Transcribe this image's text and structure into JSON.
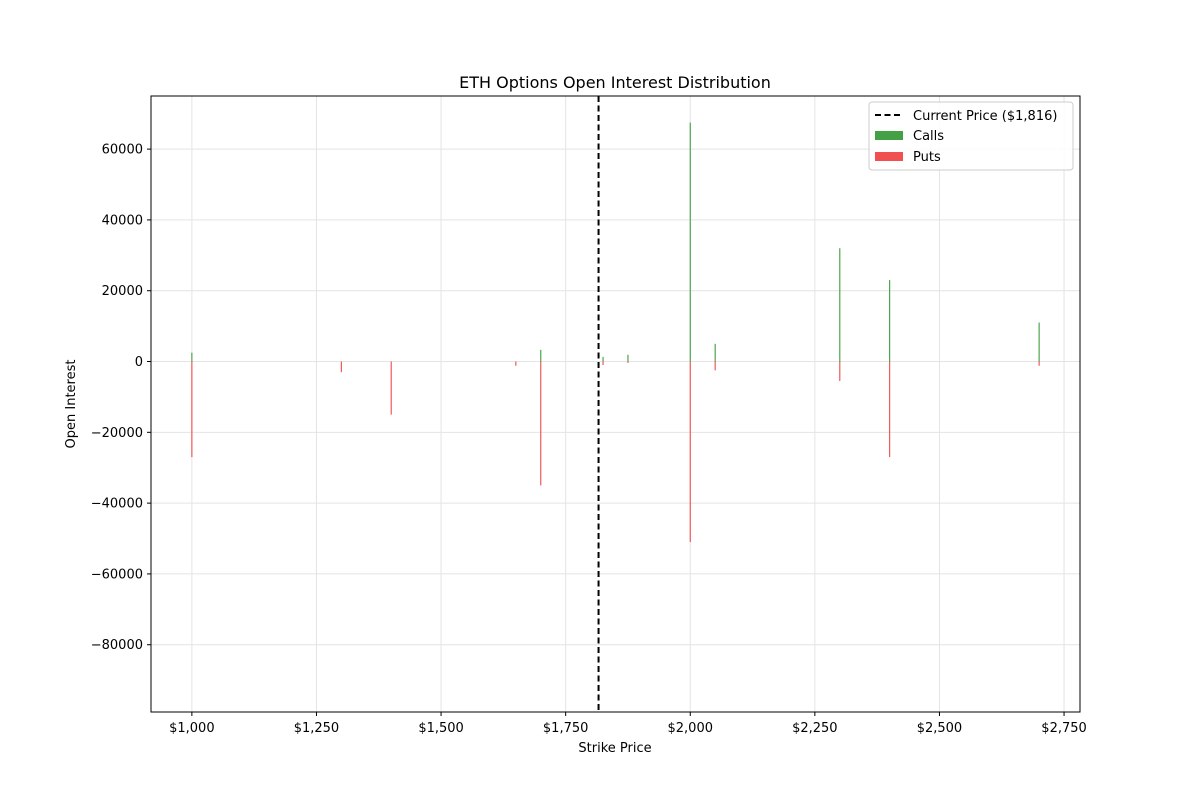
{
  "chart_data": {
    "type": "bar",
    "title": "ETH Options Open Interest Distribution",
    "xlabel": "Strike Price",
    "ylabel": "Open Interest",
    "xlim": [
      918,
      2782
    ],
    "ylim": [
      -99000,
      75000
    ],
    "x_ticks": [
      {
        "value": 1000,
        "label": "$1,000"
      },
      {
        "value": 1250,
        "label": "$1,250"
      },
      {
        "value": 1500,
        "label": "$1,500"
      },
      {
        "value": 1750,
        "label": "$1,750"
      },
      {
        "value": 2000,
        "label": "$2,000"
      },
      {
        "value": 2250,
        "label": "$2,250"
      },
      {
        "value": 2500,
        "label": "$2,500"
      },
      {
        "value": 2750,
        "label": "$2,750"
      }
    ],
    "y_ticks": [
      {
        "value": 60000,
        "label": "60000"
      },
      {
        "value": 40000,
        "label": "40000"
      },
      {
        "value": 20000,
        "label": "20000"
      },
      {
        "value": 0,
        "label": "0"
      },
      {
        "value": -20000,
        "label": "−20000"
      },
      {
        "value": -40000,
        "label": "−40000"
      },
      {
        "value": -60000,
        "label": "−60000"
      },
      {
        "value": -80000,
        "label": "−80000"
      }
    ],
    "grid": true,
    "legend_position": "top-right",
    "current_price": {
      "value": 1816,
      "label": "Current Price ($1,816)",
      "color": "#000000"
    },
    "series": [
      {
        "name": "Calls",
        "color": "#44a044",
        "points": [
          {
            "x": 1000,
            "y": 2500
          },
          {
            "x": 1700,
            "y": 3300
          },
          {
            "x": 1825,
            "y": 1300
          },
          {
            "x": 1875,
            "y": 1900
          },
          {
            "x": 2000,
            "y": 67500
          },
          {
            "x": 2050,
            "y": 5000
          },
          {
            "x": 2300,
            "y": 32000
          },
          {
            "x": 2400,
            "y": 23000
          },
          {
            "x": 2700,
            "y": 11000
          }
        ]
      },
      {
        "name": "Puts",
        "color": "#f05050",
        "points": [
          {
            "x": 1000,
            "y": -27000
          },
          {
            "x": 1300,
            "y": -3000
          },
          {
            "x": 1400,
            "y": -15000
          },
          {
            "x": 1650,
            "y": -1200
          },
          {
            "x": 1700,
            "y": -35000
          },
          {
            "x": 1825,
            "y": -1000
          },
          {
            "x": 1875,
            "y": -400
          },
          {
            "x": 2000,
            "y": -51000
          },
          {
            "x": 2050,
            "y": -2500
          },
          {
            "x": 2300,
            "y": -5500
          },
          {
            "x": 2400,
            "y": -27000
          },
          {
            "x": 2700,
            "y": -1200
          }
        ]
      }
    ]
  }
}
